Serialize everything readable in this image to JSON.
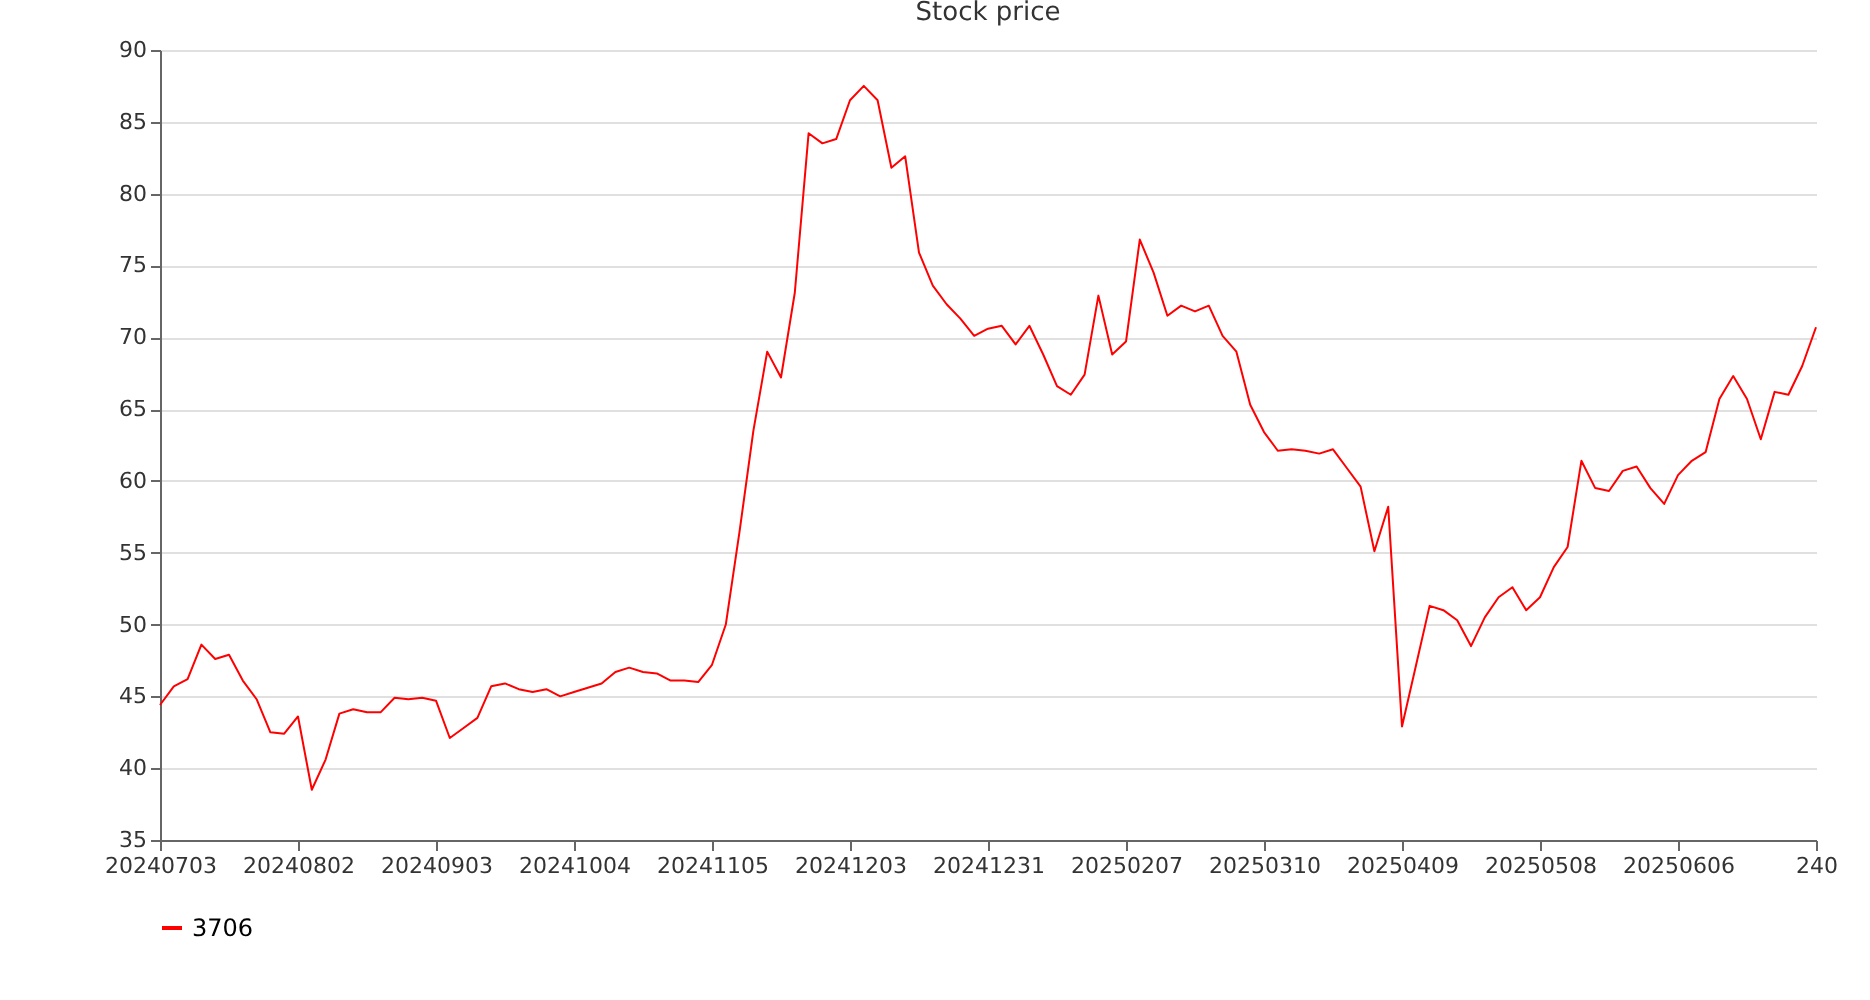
{
  "chart_data": {
    "type": "line",
    "title": "Stock price",
    "categories": [
      "20240703",
      null,
      null,
      null,
      null,
      null,
      null,
      null,
      null,
      null,
      "20240802",
      null,
      null,
      null,
      null,
      null,
      null,
      null,
      null,
      null,
      "20240903",
      null,
      null,
      null,
      null,
      null,
      null,
      null,
      null,
      null,
      "20241004",
      null,
      null,
      null,
      null,
      null,
      null,
      null,
      null,
      null,
      "20241105",
      null,
      null,
      null,
      null,
      null,
      null,
      null,
      null,
      null,
      "20241203",
      null,
      null,
      null,
      null,
      null,
      null,
      null,
      null,
      null,
      "20241231",
      null,
      null,
      null,
      null,
      null,
      null,
      null,
      null,
      null,
      "20250207",
      null,
      null,
      null,
      null,
      null,
      null,
      null,
      null,
      null,
      "20250310",
      null,
      null,
      null,
      null,
      null,
      null,
      null,
      null,
      null,
      "20250409",
      null,
      null,
      null,
      null,
      null,
      null,
      null,
      null,
      null,
      "20250508",
      null,
      null,
      null,
      null,
      null,
      null,
      null,
      null,
      null,
      "20250606",
      null,
      null,
      null,
      null,
      null,
      null,
      null,
      null,
      null,
      "240"
    ],
    "series": [
      {
        "name": "3706",
        "color": "#ff0000",
        "values": [
          44.4,
          45.7,
          46.2,
          48.6,
          47.6,
          47.9,
          46.1,
          44.8,
          42.5,
          42.4,
          43.6,
          38.5,
          40.6,
          43.8,
          44.1,
          43.9,
          43.9,
          44.9,
          44.8,
          44.9,
          44.7,
          42.1,
          42.8,
          43.5,
          45.7,
          45.9,
          45.5,
          45.3,
          45.5,
          45.0,
          45.3,
          45.6,
          45.9,
          46.7,
          47.0,
          46.7,
          46.6,
          46.1,
          46.1,
          46.0,
          47.2,
          50.0,
          56.5,
          63.5,
          69.0,
          67.2,
          73.1,
          84.2,
          83.5,
          83.8,
          86.5,
          87.5,
          86.5,
          81.8,
          82.6,
          75.9,
          73.6,
          72.3,
          71.3,
          70.1,
          70.6,
          70.8,
          69.5,
          70.8,
          68.8,
          66.6,
          66.0,
          67.4,
          72.9,
          68.8,
          69.7,
          76.8,
          74.5,
          71.5,
          72.2,
          71.8,
          72.2,
          70.1,
          69.0,
          65.3,
          63.4,
          62.1,
          62.2,
          62.1,
          61.9,
          62.2,
          60.9,
          59.6,
          55.1,
          58.2,
          42.9,
          47.1,
          51.3,
          51.0,
          50.3,
          48.5,
          50.5,
          51.9,
          52.6,
          51.0,
          51.9,
          54.0,
          55.4,
          61.4,
          59.5,
          59.3,
          60.7,
          61.0,
          59.5,
          58.4,
          60.4,
          61.4,
          62.0,
          65.7,
          67.3,
          65.7,
          62.9,
          66.2,
          66.0,
          68.0,
          70.7
        ]
      }
    ],
    "ylim": [
      35,
      90
    ],
    "yticks": [
      35,
      40,
      45,
      50,
      55,
      60,
      65,
      70,
      75,
      80,
      85,
      90
    ],
    "grid": "y",
    "legend": "bottom"
  }
}
